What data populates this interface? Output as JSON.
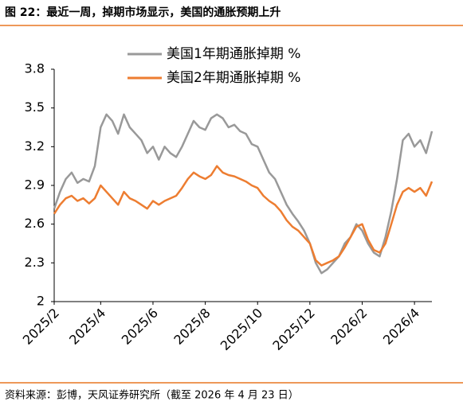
{
  "chart_data": {
    "type": "line",
    "title": "图 22：最近一周，掉期市场显示，美国的通胀预期上升",
    "source": "资料来源：彭博，天风证券研究所（截至 2026 年 4 月 23 日）",
    "categories": [
      "2025/2",
      null,
      null,
      null,
      null,
      null,
      null,
      null,
      "2025/4",
      null,
      null,
      null,
      null,
      null,
      null,
      null,
      null,
      "2025/6",
      null,
      null,
      null,
      null,
      null,
      null,
      null,
      null,
      "2025/8",
      null,
      null,
      null,
      null,
      null,
      null,
      null,
      null,
      "2025/10",
      null,
      null,
      null,
      null,
      null,
      null,
      null,
      null,
      "2025/12",
      null,
      null,
      null,
      null,
      null,
      null,
      null,
      null,
      "2026/2",
      null,
      null,
      null,
      null,
      null,
      null,
      null,
      null,
      "2026/4",
      null,
      null,
      null
    ],
    "series": [
      {
        "name": "美国1年期通胀掉期 %",
        "color": "#999999",
        "values": [
          2.72,
          2.85,
          2.95,
          3.0,
          2.92,
          2.95,
          2.93,
          3.05,
          3.35,
          3.45,
          3.4,
          3.3,
          3.45,
          3.35,
          3.3,
          3.25,
          3.15,
          3.2,
          3.1,
          3.2,
          3.15,
          3.12,
          3.2,
          3.3,
          3.4,
          3.35,
          3.33,
          3.42,
          3.45,
          3.42,
          3.35,
          3.37,
          3.32,
          3.3,
          3.22,
          3.2,
          3.1,
          3.0,
          2.95,
          2.85,
          2.75,
          2.68,
          2.62,
          2.55,
          2.45,
          2.3,
          2.22,
          2.25,
          2.3,
          2.35,
          2.45,
          2.5,
          2.6,
          2.55,
          2.45,
          2.38,
          2.35,
          2.5,
          2.7,
          2.95,
          3.25,
          3.3,
          3.2,
          3.25,
          3.15,
          3.32
        ]
      },
      {
        "name": "美国2年期通胀掉期 %",
        "color": "#ed7d31",
        "values": [
          2.68,
          2.75,
          2.8,
          2.82,
          2.78,
          2.8,
          2.76,
          2.8,
          2.9,
          2.85,
          2.8,
          2.75,
          2.85,
          2.8,
          2.78,
          2.75,
          2.72,
          2.78,
          2.75,
          2.78,
          2.8,
          2.82,
          2.88,
          2.95,
          3.0,
          2.97,
          2.95,
          2.98,
          3.05,
          3.0,
          2.98,
          2.97,
          2.95,
          2.93,
          2.9,
          2.88,
          2.82,
          2.78,
          2.75,
          2.7,
          2.63,
          2.58,
          2.55,
          2.5,
          2.45,
          2.32,
          2.28,
          2.3,
          2.32,
          2.35,
          2.42,
          2.5,
          2.58,
          2.6,
          2.48,
          2.4,
          2.38,
          2.45,
          2.6,
          2.75,
          2.85,
          2.88,
          2.85,
          2.88,
          2.82,
          2.93
        ]
      }
    ],
    "ylim": [
      2,
      3.8
    ],
    "yticks": [
      2,
      2.3,
      2.6,
      2.9,
      3.2,
      3.5,
      3.8
    ]
  }
}
